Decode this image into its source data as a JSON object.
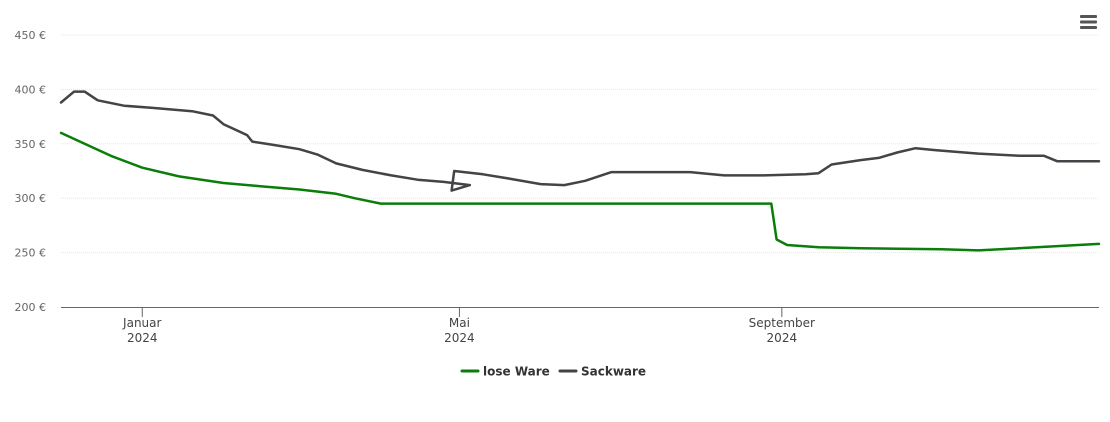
{
  "menu": {
    "icon": "hamburger-menu-icon"
  },
  "chart_data": {
    "type": "line",
    "title": "",
    "xlabel": "",
    "ylabel": "",
    "x_range": [
      "2023-12-01",
      "2024-12-31"
    ],
    "ylim": [
      200,
      450
    ],
    "y_ticks": [
      {
        "value": 200,
        "label": "200 €"
      },
      {
        "value": 250,
        "label": "250 €"
      },
      {
        "value": 300,
        "label": "300 €"
      },
      {
        "value": 350,
        "label": "350 €"
      },
      {
        "value": 400,
        "label": "400 €"
      },
      {
        "value": 450,
        "label": "450 €"
      }
    ],
    "x_ticks": [
      {
        "date": "2024-01-01",
        "month": "Januar",
        "year": "2024"
      },
      {
        "date": "2024-05-01",
        "month": "Mai",
        "year": "2024"
      },
      {
        "date": "2024-09-01",
        "month": "September",
        "year": "2024"
      }
    ],
    "grid": true,
    "legend_position": "bottom-center",
    "series": [
      {
        "name": "lose Ware",
        "color": "#0a7d0a",
        "points": [
          [
            "2023-12-01",
            360
          ],
          [
            "2023-12-10",
            350
          ],
          [
            "2023-12-20",
            339
          ],
          [
            "2024-01-01",
            328
          ],
          [
            "2024-01-15",
            320
          ],
          [
            "2024-02-01",
            314
          ],
          [
            "2024-02-15",
            311
          ],
          [
            "2024-03-01",
            308
          ],
          [
            "2024-03-15",
            304
          ],
          [
            "2024-03-22",
            300
          ],
          [
            "2024-04-01",
            295
          ],
          [
            "2024-05-01",
            295
          ],
          [
            "2024-06-01",
            295
          ],
          [
            "2024-07-01",
            295
          ],
          [
            "2024-08-01",
            295
          ],
          [
            "2024-08-28",
            295
          ],
          [
            "2024-08-30",
            262
          ],
          [
            "2024-09-03",
            257
          ],
          [
            "2024-09-15",
            255
          ],
          [
            "2024-10-01",
            254
          ],
          [
            "2024-11-01",
            253
          ],
          [
            "2024-11-15",
            252
          ],
          [
            "2024-12-31",
            258
          ]
        ]
      },
      {
        "name": "Sackware",
        "color": "#434348",
        "points": [
          [
            "2023-12-01",
            388
          ],
          [
            "2023-12-06",
            398
          ],
          [
            "2023-12-10",
            398
          ],
          [
            "2023-12-15",
            390
          ],
          [
            "2023-12-25",
            385
          ],
          [
            "2024-01-05",
            383
          ],
          [
            "2024-01-20",
            380
          ],
          [
            "2024-01-28",
            376
          ],
          [
            "2024-02-01",
            368
          ],
          [
            "2024-02-10",
            358
          ],
          [
            "2024-02-12",
            352
          ],
          [
            "2024-02-20",
            349
          ],
          [
            "2024-03-01",
            345
          ],
          [
            "2024-03-08",
            340
          ],
          [
            "2024-03-15",
            332
          ],
          [
            "2024-03-25",
            326
          ],
          [
            "2024-04-05",
            321
          ],
          [
            "2024-04-15",
            317
          ],
          [
            "2024-04-25",
            315
          ],
          [
            "2024-05-05",
            312
          ],
          [
            "2024-04-28",
            307
          ],
          [
            "2024-04-29",
            325
          ],
          [
            "2024-05-10",
            322
          ],
          [
            "2024-05-20",
            318
          ],
          [
            "2024-06-01",
            313
          ],
          [
            "2024-06-10",
            312
          ],
          [
            "2024-06-18",
            316
          ],
          [
            "2024-06-28",
            324
          ],
          [
            "2024-07-15",
            324
          ],
          [
            "2024-07-28",
            324
          ],
          [
            "2024-08-10",
            321
          ],
          [
            "2024-08-25",
            321
          ],
          [
            "2024-09-10",
            322
          ],
          [
            "2024-09-15",
            323
          ],
          [
            "2024-09-20",
            331
          ],
          [
            "2024-10-01",
            335
          ],
          [
            "2024-10-08",
            337
          ],
          [
            "2024-10-15",
            342
          ],
          [
            "2024-10-22",
            346
          ],
          [
            "2024-10-30",
            344
          ],
          [
            "2024-11-15",
            341
          ],
          [
            "2024-12-01",
            339
          ],
          [
            "2024-12-10",
            339
          ],
          [
            "2024-12-15",
            334
          ],
          [
            "2024-12-31",
            334
          ]
        ]
      }
    ]
  }
}
